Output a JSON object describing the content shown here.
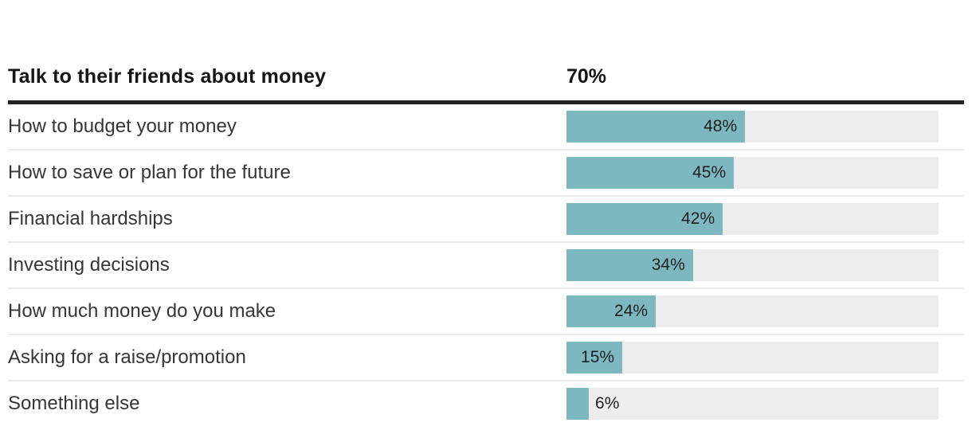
{
  "chart_data": {
    "type": "bar",
    "orientation": "horizontal",
    "title": "Talk to their friends about money",
    "header": {
      "label": "Talk to their friends about money",
      "value": 70,
      "value_label": "70%"
    },
    "categories": [
      "How to budget your money",
      "How to save or plan for the future",
      "Financial hardships",
      "Investing decisions",
      "How much money do you make",
      "Asking for a raise/promotion",
      "Something else"
    ],
    "values": [
      48,
      45,
      42,
      34,
      24,
      15,
      6
    ],
    "value_labels": [
      "48%",
      "45%",
      "42%",
      "34%",
      "24%",
      "15%",
      "6%"
    ],
    "xlim": [
      0,
      100
    ],
    "grid": false,
    "legend": "none",
    "colors": {
      "bar_fill": "#7db8c0",
      "bar_track": "#ededed",
      "header_rule": "#212121",
      "row_separator": "#ebebeb",
      "category_text": "#363636",
      "value_text": "#1f1f1f",
      "header_text": "#161616",
      "background": "#ffffff"
    }
  }
}
